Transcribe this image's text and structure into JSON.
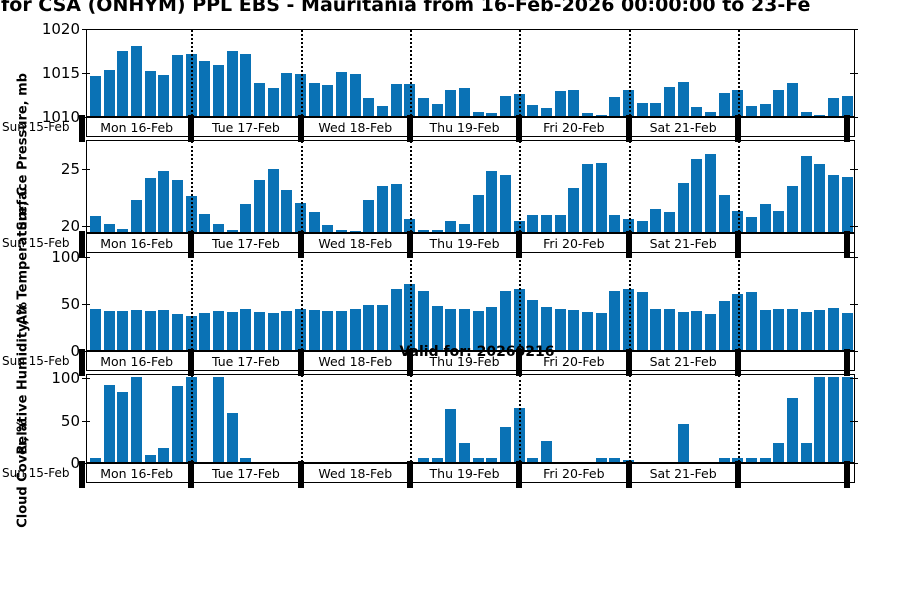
{
  "title": "for CSA (ONHYM) PPL EBS  - Mauritania from 16-Feb-2026 00:00:00 to 23-Fe",
  "valid_for": "Valid for: 20260216",
  "axis_start_label": "Sun 15-Feb",
  "day_labels": [
    "Mon 16-Feb",
    "Tue 17-Feb",
    "Wed 18-Feb",
    "Thu 19-Feb",
    "Fri 20-Feb",
    "Sat 21-Feb",
    ""
  ],
  "colors": {
    "bar": "#0a72b5",
    "axis": "#000000",
    "background": "#ffffff"
  },
  "chart_data": [
    {
      "type": "bar",
      "ylabel": "Surface Pressure, mb",
      "yticks": [
        1010,
        1015,
        1020
      ],
      "ylim": [
        1010,
        1020
      ],
      "x_interval_hours": 3,
      "x_start": "Mon 16-Feb 03:00",
      "values": [
        1014.6,
        1015.2,
        1017.4,
        1017.9,
        1015.1,
        1014.7,
        1016.9,
        1017.0,
        1016.2,
        1015.8,
        1017.4,
        1017.1,
        1013.7,
        1013.2,
        1014.9,
        1014.8,
        1013.8,
        1013.5,
        1015.0,
        1014.8,
        1012.0,
        1011.1,
        1013.6,
        1013.6,
        1012.0,
        1011.4,
        1013.0,
        1013.2,
        1010.4,
        1010.3,
        1012.3,
        1012.5,
        1011.2,
        1010.9,
        1012.8,
        1013.0,
        1010.3,
        1010.1,
        1012.2,
        1012.9,
        1011.5,
        1011.5,
        1013.3,
        1013.9,
        1011.0,
        1010.5,
        1012.6,
        1012.9,
        1011.1,
        1011.4,
        1012.9,
        1013.8,
        1010.4,
        1010.1,
        1012.1,
        1012.3
      ]
    },
    {
      "type": "bar",
      "ylabel": "Air Temperature, C",
      "yticks": [
        20,
        25
      ],
      "ylim": [
        19.4,
        27.5
      ],
      "x_interval_hours": 3,
      "x_start": "Mon 16-Feb 03:00",
      "values": [
        20.8,
        20.1,
        19.7,
        22.2,
        24.1,
        24.7,
        23.9,
        22.5,
        21.0,
        20.1,
        19.6,
        21.8,
        23.9,
        24.9,
        23.1,
        21.9,
        21.1,
        20.0,
        19.6,
        19.5,
        22.2,
        23.4,
        23.6,
        20.5,
        19.6,
        19.6,
        20.4,
        20.1,
        22.6,
        24.7,
        24.4,
        20.4,
        20.9,
        20.9,
        20.9,
        23.2,
        25.3,
        25.4,
        20.9,
        20.5,
        20.4,
        21.4,
        21.1,
        23.7,
        25.8,
        26.2,
        22.6,
        21.2,
        20.7,
        21.8,
        21.2,
        23.4,
        26.0,
        25.3,
        24.4,
        24.2
      ]
    },
    {
      "type": "bar",
      "ylabel": "Relative Humidity, %",
      "yticks": [
        0,
        50,
        100
      ],
      "ylim": [
        0,
        105
      ],
      "x_interval_hours": 3,
      "x_start": "Mon 16-Feb 03:00",
      "values": [
        44,
        41,
        41,
        42,
        41,
        42,
        38,
        36,
        39,
        41,
        40,
        43,
        40,
        39,
        41,
        44,
        42,
        41,
        41,
        44,
        48,
        48,
        65,
        70,
        63,
        47,
        44,
        43,
        41,
        46,
        63,
        65,
        53,
        46,
        43,
        42,
        40,
        39,
        63,
        65,
        62,
        44,
        44,
        40,
        41,
        38,
        52,
        59,
        62,
        42,
        43,
        43,
        40,
        42,
        45,
        39
      ]
    },
    {
      "type": "bar",
      "ylabel": "Cloud Cover, %",
      "yticks": [
        0,
        50,
        100
      ],
      "ylim": [
        0,
        105
      ],
      "x_interval_hours": 3,
      "x_start": "Mon 16-Feb 03:00",
      "values": [
        5,
        91,
        83,
        100,
        8,
        16,
        90,
        100,
        0,
        100,
        58,
        5,
        0,
        0,
        0,
        0,
        0,
        0,
        0,
        0,
        0,
        0,
        0,
        0,
        5,
        5,
        63,
        23,
        5,
        5,
        41,
        64,
        5,
        25,
        0,
        0,
        0,
        5,
        5,
        2,
        0,
        0,
        0,
        45,
        0,
        0,
        5,
        5,
        5,
        5,
        23,
        75,
        23,
        100,
        100,
        100
      ]
    }
  ]
}
